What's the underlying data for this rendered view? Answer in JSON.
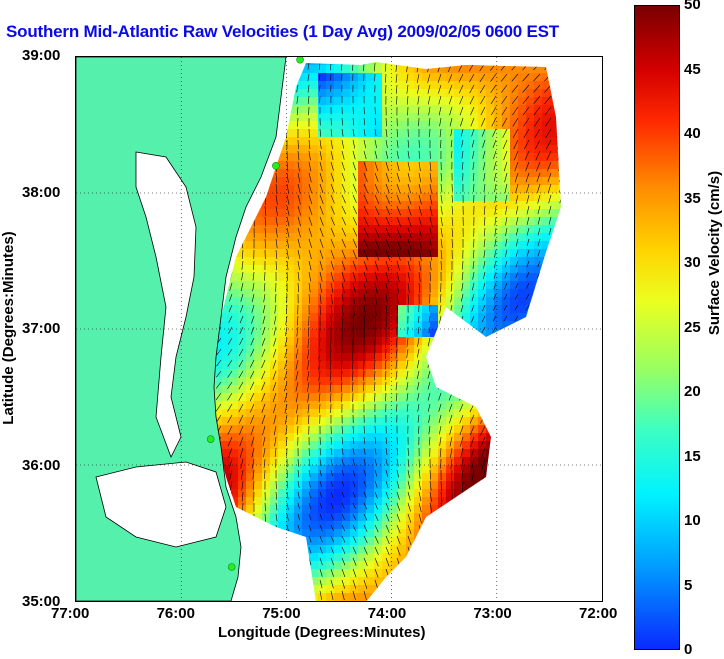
{
  "chart_data": {
    "type": "map",
    "title": "Southern Mid-Atlantic Raw Velocities (1 Day Avg) 2009/02/05 0600 EST",
    "xlabel": "Longitude (Degrees:Minutes)",
    "ylabel": "Latitude (Degrees:Minutes)",
    "x_ticks": [
      "77:00",
      "76:00",
      "75:00",
      "74:00",
      "73:00",
      "72:00"
    ],
    "y_ticks": [
      "39:00",
      "38:00",
      "37:00",
      "36:00",
      "35:00"
    ],
    "xlim": [
      -77,
      -72
    ],
    "ylim": [
      35,
      39
    ],
    "grid": "dotted",
    "colorbar": {
      "label": "Surface Velocity (cm/s)",
      "range": [
        0,
        50
      ],
      "ticks": [
        "0",
        "5",
        "10",
        "15",
        "20",
        "25",
        "30",
        "35",
        "40",
        "45",
        "50"
      ]
    },
    "colors": {
      "land": "#55f0ab",
      "water": "#ffffff",
      "title": "#0a0ae6",
      "vector": "#000000",
      "station": "#22ee22"
    },
    "stations": [
      {
        "lon": -74.87,
        "lat": 38.98
      },
      {
        "lon": -75.1,
        "lat": 38.2
      },
      {
        "lon": -75.72,
        "lat": 36.19
      },
      {
        "lon": -75.52,
        "lat": 35.25
      }
    ]
  }
}
